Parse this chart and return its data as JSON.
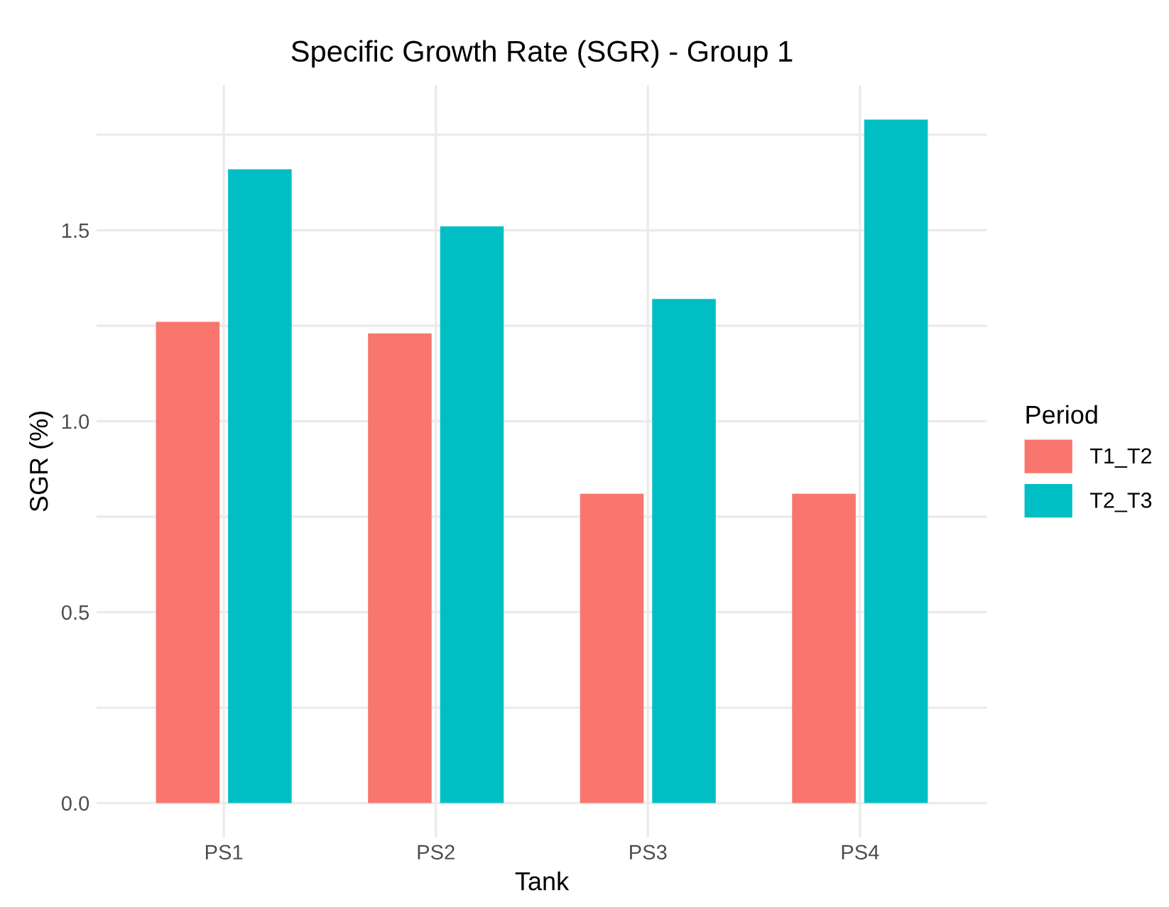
{
  "chart_data": {
    "type": "bar",
    "title": "Specific Growth Rate (SGR) - Group 1",
    "xlabel": "Tank",
    "ylabel": "SGR (%)",
    "legend_title": "Period",
    "categories": [
      "PS1",
      "PS2",
      "PS3",
      "PS4"
    ],
    "series": [
      {
        "name": "T1_T2",
        "color": "#f8766d",
        "values": [
          1.26,
          1.23,
          0.81,
          0.81
        ]
      },
      {
        "name": "T2_T3",
        "color": "#00bfc4",
        "values": [
          1.66,
          1.51,
          1.32,
          1.79
        ]
      }
    ],
    "ylim": [
      -0.09,
      1.88
    ],
    "yticks": [
      {
        "value": 0,
        "label": "0.0"
      },
      {
        "value": 0.25,
        "label": null
      },
      {
        "value": 0.5,
        "label": "0.5"
      },
      {
        "value": 0.75,
        "label": null
      },
      {
        "value": 1.0,
        "label": "1.0"
      },
      {
        "value": 1.25,
        "label": null
      },
      {
        "value": 1.5,
        "label": "1.5"
      },
      {
        "value": 1.75,
        "label": null
      }
    ],
    "grid": true,
    "legend": "right"
  }
}
